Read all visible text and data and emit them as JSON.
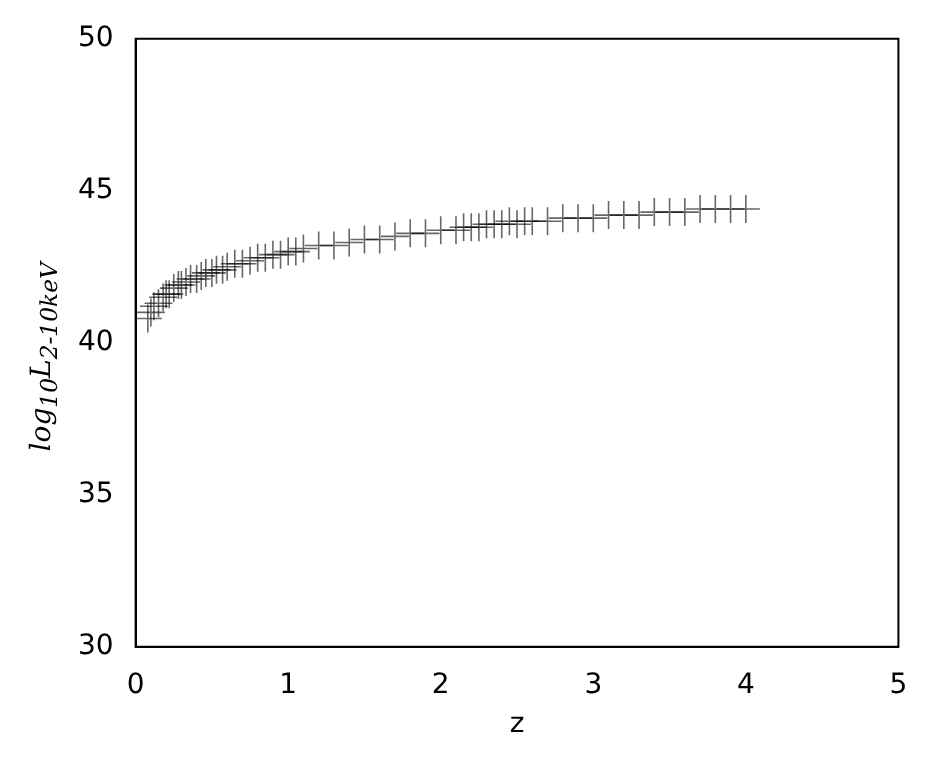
{
  "chart_data": {
    "type": "scatter",
    "xlabel": "z",
    "ylabel": "log$_{10}$L$_{2-10keV}$",
    "xlim": [
      0,
      5
    ],
    "ylim": [
      30,
      50
    ],
    "xticks": [
      0,
      1,
      2,
      3,
      4,
      5
    ],
    "yticks": [
      30,
      35,
      40,
      45,
      50
    ],
    "grid": false,
    "legend": false,
    "marker": "cross",
    "series": [
      {
        "color": "#000000",
        "x": [
          0.08,
          0.1,
          0.12,
          0.15,
          0.18,
          0.2,
          0.22,
          0.25,
          0.28,
          0.3,
          0.33,
          0.36,
          0.4,
          0.43,
          0.46,
          0.5,
          0.53,
          0.57,
          0.6,
          0.65,
          0.7,
          0.75,
          0.8,
          0.85,
          0.9,
          0.95,
          1.0,
          1.05,
          1.1,
          1.2,
          1.3,
          1.4,
          1.5,
          1.6,
          1.7,
          1.8,
          1.9,
          2.0,
          2.1,
          2.15,
          2.2,
          2.25,
          2.3,
          2.35,
          2.4,
          2.45,
          2.5,
          2.55,
          2.6,
          2.7,
          2.8,
          2.9,
          3.0,
          3.1,
          3.2,
          3.3,
          3.4,
          3.5,
          3.6,
          3.7,
          3.8,
          3.9,
          4.0
        ],
        "values": [
          40.8,
          41.0,
          41.2,
          41.3,
          41.5,
          41.6,
          41.6,
          41.8,
          41.9,
          41.9,
          42.0,
          42.1,
          42.1,
          42.2,
          42.3,
          42.3,
          42.4,
          42.4,
          42.5,
          42.6,
          42.6,
          42.7,
          42.8,
          42.8,
          42.9,
          42.9,
          43.0,
          43.0,
          43.1,
          43.2,
          43.2,
          43.3,
          43.4,
          43.4,
          43.5,
          43.6,
          43.6,
          43.7,
          43.7,
          43.8,
          43.8,
          43.8,
          43.9,
          43.9,
          43.9,
          44.0,
          43.9,
          44.0,
          44.0,
          44.0,
          44.1,
          44.1,
          44.1,
          44.2,
          44.2,
          44.2,
          44.3,
          44.3,
          44.3,
          44.4,
          44.4,
          44.4,
          44.4
        ]
      }
    ]
  }
}
